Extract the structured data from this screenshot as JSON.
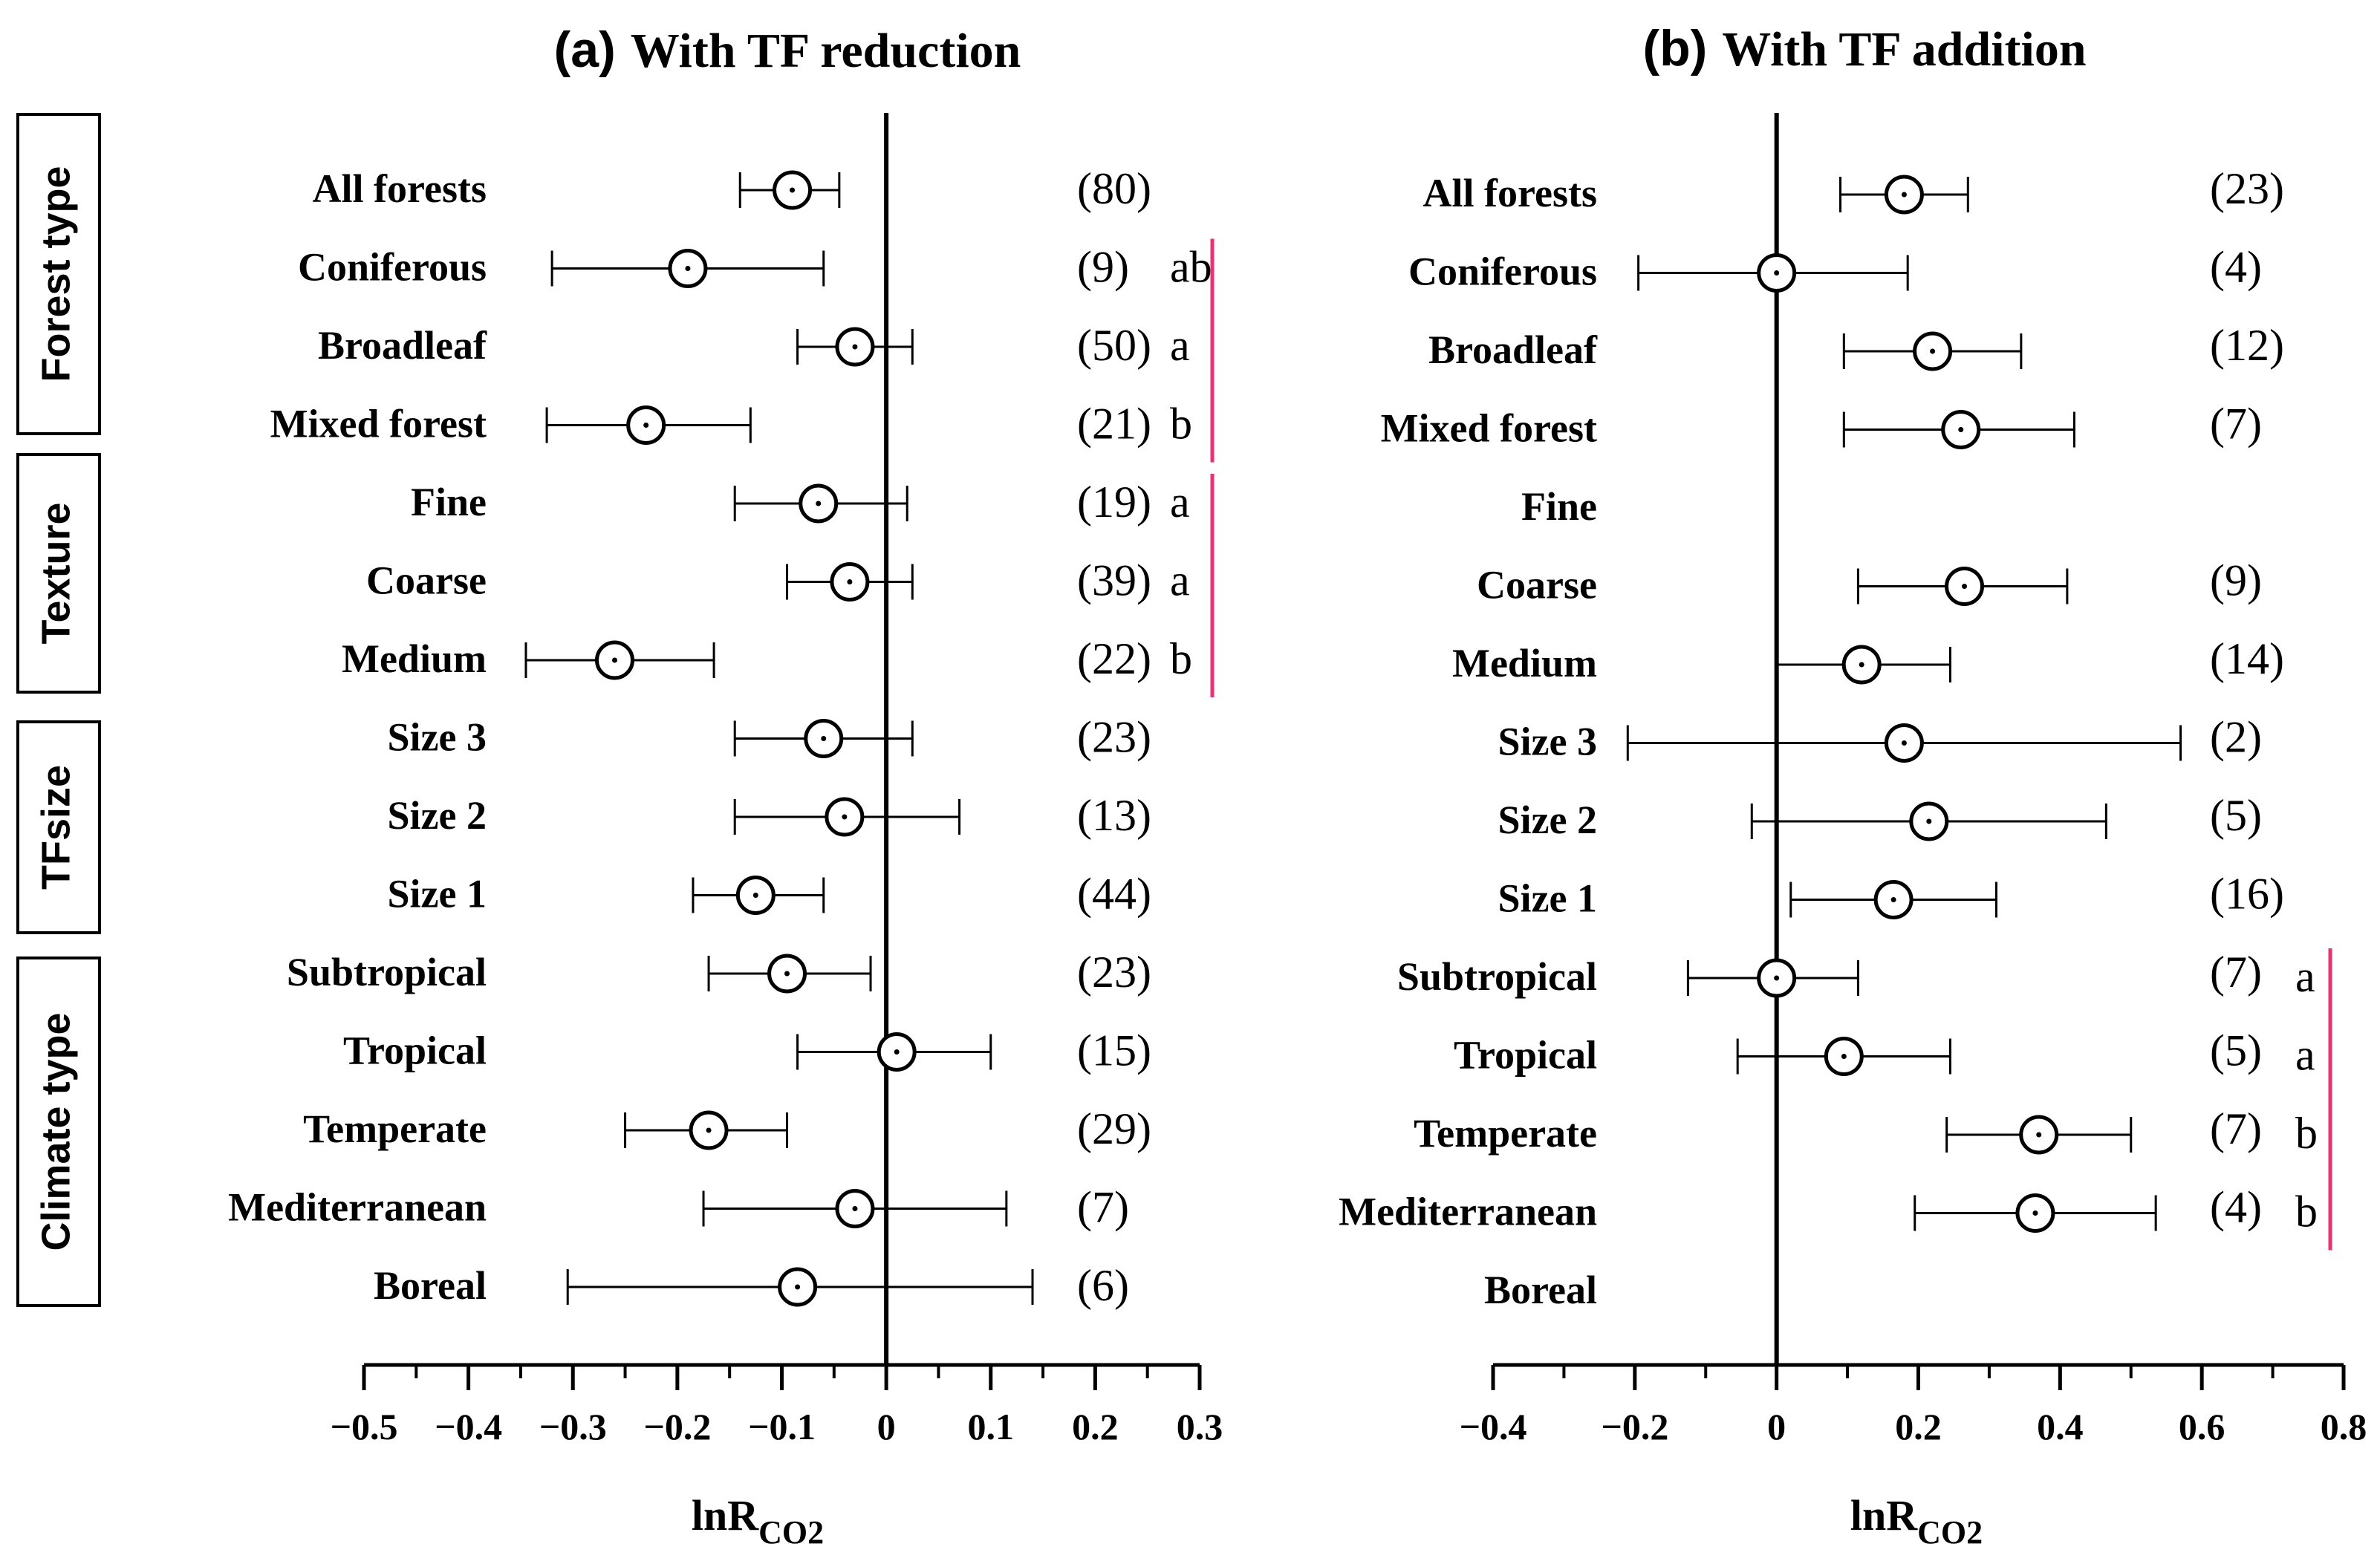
{
  "chart_data": [
    {
      "type": "forest",
      "panel": "(a)",
      "title": "With TF reduction",
      "xlabel": "lnR",
      "xlabel_sub": "CO2",
      "xlim": [
        -0.5,
        0.3
      ],
      "xticks": [
        "−0.5",
        "−0.4",
        "−0.3",
        "−0.2",
        "−0.1",
        "0",
        "0.1",
        "0.2",
        "0.3"
      ],
      "rows": [
        {
          "label": "All forests",
          "mean": -0.09,
          "lo": -0.14,
          "hi": -0.045,
          "n": "(80)",
          "sig": ""
        },
        {
          "label": "Coniferous",
          "mean": -0.19,
          "lo": -0.32,
          "hi": -0.06,
          "n": "(9)",
          "sig": "ab"
        },
        {
          "label": "Broadleaf",
          "mean": -0.03,
          "lo": -0.085,
          "hi": 0.025,
          "n": "(50)",
          "sig": "a"
        },
        {
          "label": "Mixed forest",
          "mean": -0.23,
          "lo": -0.325,
          "hi": -0.13,
          "n": "(21)",
          "sig": "b"
        },
        {
          "label": "Fine",
          "mean": -0.065,
          "lo": -0.145,
          "hi": 0.02,
          "n": "(19)",
          "sig": "a"
        },
        {
          "label": "Coarse",
          "mean": -0.035,
          "lo": -0.095,
          "hi": 0.025,
          "n": "(39)",
          "sig": "a"
        },
        {
          "label": "Medium",
          "mean": -0.26,
          "lo": -0.345,
          "hi": -0.165,
          "n": "(22)",
          "sig": "b"
        },
        {
          "label": "Size 3",
          "mean": -0.06,
          "lo": -0.145,
          "hi": 0.025,
          "n": "(23)",
          "sig": ""
        },
        {
          "label": "Size 2",
          "mean": -0.04,
          "lo": -0.145,
          "hi": 0.07,
          "n": "(13)",
          "sig": ""
        },
        {
          "label": "Size 1",
          "mean": -0.125,
          "lo": -0.185,
          "hi": -0.06,
          "n": "(44)",
          "sig": ""
        },
        {
          "label": "Subtropical",
          "mean": -0.095,
          "lo": -0.17,
          "hi": -0.015,
          "n": "(23)",
          "sig": ""
        },
        {
          "label": "Tropical",
          "mean": 0.01,
          "lo": -0.085,
          "hi": 0.1,
          "n": "(15)",
          "sig": ""
        },
        {
          "label": "Temperate",
          "mean": -0.17,
          "lo": -0.25,
          "hi": -0.095,
          "n": "(29)",
          "sig": ""
        },
        {
          "label": "Mediterranean",
          "mean": -0.03,
          "lo": -0.175,
          "hi": 0.115,
          "n": "(7)",
          "sig": ""
        },
        {
          "label": "Boreal",
          "mean": -0.085,
          "lo": -0.305,
          "hi": 0.14,
          "n": "(6)",
          "sig": ""
        }
      ]
    },
    {
      "type": "forest",
      "panel": "(b)",
      "title": "With TF addition",
      "xlabel": "lnR",
      "xlabel_sub": "CO2",
      "xlim": [
        -0.4,
        0.8
      ],
      "xticks": [
        "−0.4",
        "−0.2",
        "0",
        "0.2",
        "0.4",
        "0.6",
        "0.8"
      ],
      "rows": [
        {
          "label": "All forests",
          "mean": 0.18,
          "lo": 0.09,
          "hi": 0.27,
          "n": "(23)",
          "sig": ""
        },
        {
          "label": "Coniferous",
          "mean": 0.0,
          "lo": -0.195,
          "hi": 0.185,
          "n": "(4)",
          "sig": ""
        },
        {
          "label": "Broadleaf",
          "mean": 0.22,
          "lo": 0.095,
          "hi": 0.345,
          "n": "(12)",
          "sig": ""
        },
        {
          "label": "Mixed forest",
          "mean": 0.26,
          "lo": 0.095,
          "hi": 0.42,
          "n": "(7)",
          "sig": ""
        },
        {
          "label": "Fine",
          "mean": null,
          "lo": null,
          "hi": null,
          "n": "",
          "sig": ""
        },
        {
          "label": "Coarse",
          "mean": 0.265,
          "lo": 0.115,
          "hi": 0.41,
          "n": "(9)",
          "sig": ""
        },
        {
          "label": "Medium",
          "mean": 0.12,
          "lo": 0.0,
          "hi": 0.245,
          "n": "(14)",
          "sig": ""
        },
        {
          "label": "Size 3",
          "mean": 0.18,
          "lo": -0.21,
          "hi": 0.57,
          "n": "(2)",
          "sig": ""
        },
        {
          "label": "Size 2",
          "mean": 0.215,
          "lo": -0.035,
          "hi": 0.465,
          "n": "(5)",
          "sig": ""
        },
        {
          "label": "Size 1",
          "mean": 0.165,
          "lo": 0.02,
          "hi": 0.31,
          "n": "(16)",
          "sig": ""
        },
        {
          "label": "Subtropical",
          "mean": 0.0,
          "lo": -0.125,
          "hi": 0.115,
          "n": "(7)",
          "sig": "a"
        },
        {
          "label": "Tropical",
          "mean": 0.095,
          "lo": -0.055,
          "hi": 0.245,
          "n": "(5)",
          "sig": "a"
        },
        {
          "label": "Temperate",
          "mean": 0.37,
          "lo": 0.24,
          "hi": 0.5,
          "n": "(7)",
          "sig": "b"
        },
        {
          "label": "Mediterranean",
          "mean": 0.365,
          "lo": 0.195,
          "hi": 0.535,
          "n": "(4)",
          "sig": "b"
        },
        {
          "label": "Boreal",
          "mean": null,
          "lo": null,
          "hi": null,
          "n": "",
          "sig": ""
        }
      ]
    }
  ],
  "groups": [
    "Forest type",
    "Texture",
    "TFsize",
    "Climate type"
  ],
  "colors": {
    "sig_bar": "#e8336f",
    "ink": "#000000"
  }
}
